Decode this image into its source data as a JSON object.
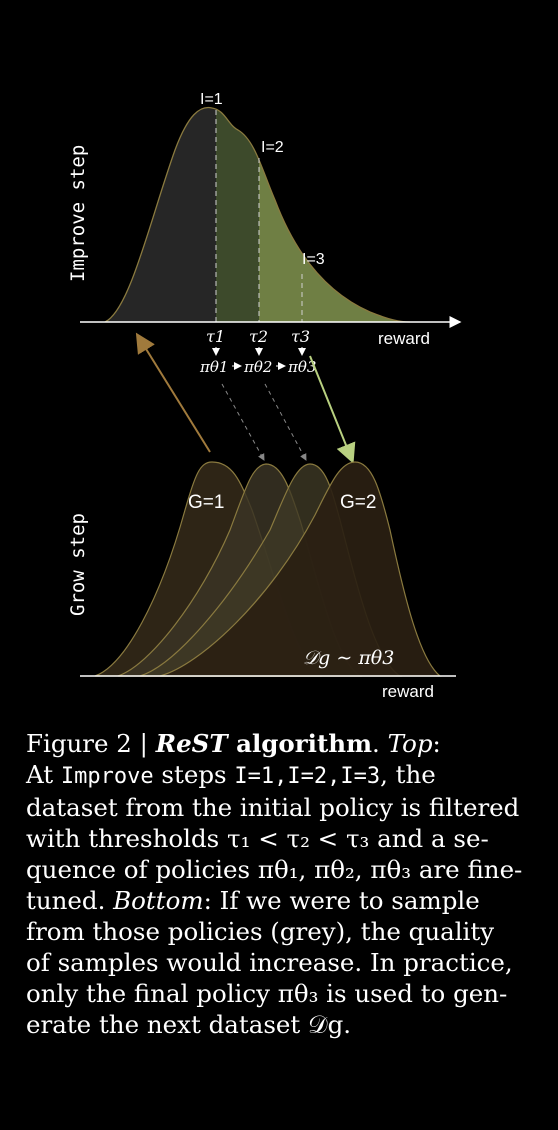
{
  "colors": {
    "background": "#000000",
    "dark_fill": "#262626",
    "mid_fill": "#3d4a2b",
    "light_fill": "#6f7f44",
    "stroke": "#8a7a3f",
    "grow_fill": "#2a2012",
    "arrow_left": "#a07a3c",
    "arrow_right": "#b8d080"
  },
  "top": {
    "side_label": "Improve step",
    "iter_labels": [
      "I=1",
      "I=2",
      "I=3"
    ],
    "thresholds": [
      "τ1",
      "τ2",
      "τ3"
    ],
    "policies": [
      "πθ1",
      "πθ2",
      "πθ3"
    ],
    "axis_label": "reward"
  },
  "bottom": {
    "side_label": "Grow step",
    "g1_label": "G=1",
    "g2_label": "G=2",
    "dataset_label": "𝒟g ∼ πθ3",
    "axis_label": "reward"
  },
  "caption": {
    "l1_a": "Figure 2 | ",
    "l1_b": "ReST",
    "l1_c": " algorithm",
    "l1_d": ".   ",
    "l1_e": "Top",
    "l1_f": ":",
    "l2_a": "At ",
    "l2_b": "Improve",
    "l2_c": " steps ",
    "l2_d": "I=1,I=2,I=3",
    "l2_e": ", the",
    "l3": "dataset from the initial policy is filtered",
    "l4": "with thresholds τ₁ < τ₂ < τ₃ and a se-",
    "l5": "quence of policies πθ₁, πθ₂, πθ₃ are fine-",
    "l6_a": "tuned. ",
    "l6_b": "Bottom",
    "l6_c": ": If we were to sample",
    "l7": "from those policies (grey), the quality",
    "l8": "of samples would increase. In practice,",
    "l9": "only the final policy πθ₃ is used to gen-",
    "l10": "erate the next dataset 𝒟g."
  }
}
